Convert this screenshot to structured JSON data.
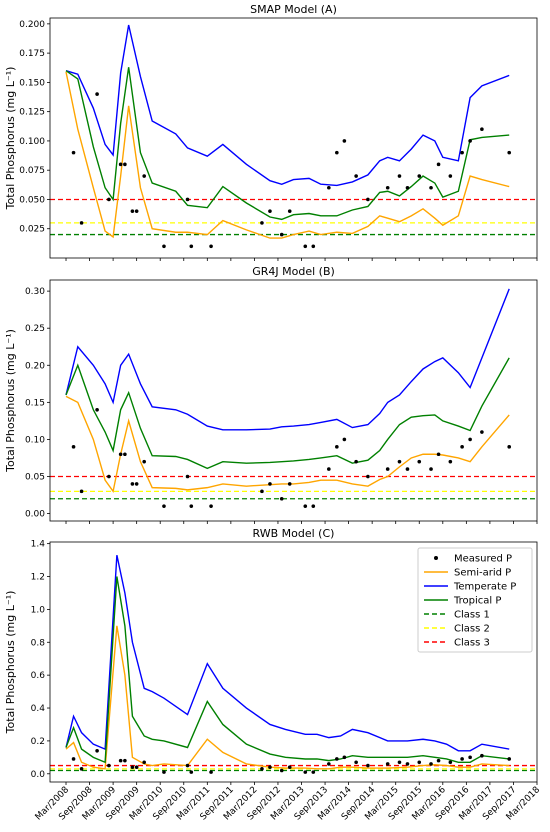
{
  "chart_data": [
    {
      "type": "line",
      "title": "SMAP Model (A)",
      "ylabel": "Total Phosphorus (mg L⁻¹)",
      "ylim": [
        0,
        0.205
      ],
      "yticks": [
        0.025,
        0.05,
        0.075,
        0.1,
        0.125,
        0.15,
        0.175,
        0.2
      ],
      "ytick_labels": [
        "0.025",
        "0.050",
        "0.075",
        "0.100",
        "0.125",
        "0.150",
        "0.175",
        "0.200"
      ],
      "x": [
        2008.17,
        2008.42,
        2008.75,
        2009.0,
        2009.17,
        2009.33,
        2009.5,
        2009.75,
        2010.0,
        2010.5,
        2010.75,
        2011.17,
        2011.5,
        2012.0,
        2012.5,
        2012.75,
        2013.0,
        2013.33,
        2013.58,
        2013.92,
        2014.25,
        2014.58,
        2014.83,
        2015.0,
        2015.25,
        2015.5,
        2015.75,
        2016.0,
        2016.17,
        2016.5,
        2016.75,
        2017.0,
        2017.58
      ],
      "series": [
        {
          "name": "Semi-arid P",
          "color": "#ffa500",
          "values": [
            0.159,
            0.11,
            0.06,
            0.023,
            0.018,
            0.07,
            0.13,
            0.06,
            0.025,
            0.022,
            0.022,
            0.02,
            0.032,
            0.024,
            0.017,
            0.017,
            0.02,
            0.023,
            0.02,
            0.022,
            0.021,
            0.027,
            0.036,
            0.034,
            0.031,
            0.036,
            0.042,
            0.034,
            0.028,
            0.036,
            0.07,
            0.067,
            0.061
          ]
        },
        {
          "name": "Temperate P",
          "color": "#0000ff",
          "values": [
            0.16,
            0.157,
            0.128,
            0.097,
            0.088,
            0.158,
            0.199,
            0.155,
            0.117,
            0.106,
            0.094,
            0.087,
            0.097,
            0.08,
            0.066,
            0.063,
            0.067,
            0.068,
            0.063,
            0.062,
            0.065,
            0.071,
            0.083,
            0.086,
            0.083,
            0.093,
            0.105,
            0.1,
            0.086,
            0.083,
            0.137,
            0.147,
            0.156
          ]
        },
        {
          "name": "Tropical P",
          "color": "#008000",
          "values": [
            0.16,
            0.153,
            0.095,
            0.06,
            0.05,
            0.115,
            0.163,
            0.09,
            0.064,
            0.057,
            0.045,
            0.043,
            0.061,
            0.047,
            0.035,
            0.033,
            0.037,
            0.038,
            0.036,
            0.036,
            0.041,
            0.044,
            0.056,
            0.057,
            0.053,
            0.061,
            0.07,
            0.064,
            0.052,
            0.057,
            0.101,
            0.103,
            0.105
          ]
        }
      ],
      "measured": {
        "name": "Measured P",
        "x": [
          2008.33,
          2008.5,
          2008.83,
          2009.08,
          2009.33,
          2009.42,
          2009.58,
          2009.67,
          2009.83,
          2010.25,
          2010.75,
          2010.83,
          2011.25,
          2012.33,
          2012.5,
          2012.75,
          2012.92,
          2013.25,
          2013.42,
          2013.75,
          2013.92,
          2014.08,
          2014.33,
          2014.58,
          2015.0,
          2015.25,
          2015.42,
          2015.67,
          2015.92,
          2016.08,
          2016.33,
          2016.58,
          2016.75,
          2017.0,
          2017.58
        ],
        "values": [
          0.09,
          0.03,
          0.14,
          0.05,
          0.08,
          0.08,
          0.04,
          0.04,
          0.07,
          0.01,
          0.05,
          0.01,
          0.01,
          0.03,
          0.04,
          0.02,
          0.04,
          0.01,
          0.01,
          0.06,
          0.09,
          0.1,
          0.07,
          0.05,
          0.06,
          0.07,
          0.06,
          0.07,
          0.06,
          0.08,
          0.07,
          0.09,
          0.1,
          0.11,
          0.09
        ]
      },
      "class_lines": [
        {
          "name": "Class 1",
          "value": 0.02,
          "color": "#008000"
        },
        {
          "name": "Class 2",
          "value": 0.03,
          "color": "#ffff00"
        },
        {
          "name": "Class 3",
          "value": 0.05,
          "color": "#ff0000"
        }
      ]
    },
    {
      "type": "line",
      "title": "GR4J Model (B)",
      "ylabel": "Total Phosphorus (mg L⁻¹)",
      "ylim": [
        -0.01,
        0.315
      ],
      "yticks": [
        0.0,
        0.05,
        0.1,
        0.15,
        0.2,
        0.25,
        0.3
      ],
      "ytick_labels": [
        "0.00",
        "0.05",
        "0.10",
        "0.15",
        "0.20",
        "0.25",
        "0.30"
      ],
      "x": [
        2008.17,
        2008.42,
        2008.75,
        2009.0,
        2009.17,
        2009.33,
        2009.5,
        2009.75,
        2010.0,
        2010.5,
        2010.75,
        2011.17,
        2011.5,
        2012.0,
        2012.5,
        2012.75,
        2013.0,
        2013.33,
        2013.58,
        2013.92,
        2014.25,
        2014.58,
        2014.83,
        2015.0,
        2015.25,
        2015.5,
        2015.75,
        2016.0,
        2016.17,
        2016.5,
        2016.75,
        2017.0,
        2017.58
      ],
      "series": [
        {
          "name": "Semi-arid P",
          "color": "#ffa500",
          "values": [
            0.158,
            0.15,
            0.1,
            0.045,
            0.03,
            0.08,
            0.125,
            0.07,
            0.035,
            0.034,
            0.032,
            0.035,
            0.04,
            0.037,
            0.039,
            0.04,
            0.04,
            0.042,
            0.045,
            0.045,
            0.04,
            0.037,
            0.046,
            0.05,
            0.063,
            0.075,
            0.08,
            0.08,
            0.079,
            0.075,
            0.07,
            0.09,
            0.133
          ]
        },
        {
          "name": "Temperate P",
          "color": "#0000ff",
          "values": [
            0.16,
            0.225,
            0.2,
            0.175,
            0.15,
            0.2,
            0.215,
            0.175,
            0.144,
            0.14,
            0.134,
            0.118,
            0.113,
            0.113,
            0.114,
            0.117,
            0.118,
            0.12,
            0.123,
            0.127,
            0.116,
            0.12,
            0.135,
            0.15,
            0.16,
            0.178,
            0.195,
            0.205,
            0.21,
            0.19,
            0.17,
            0.21,
            0.303
          ]
        },
        {
          "name": "Tropical P",
          "color": "#008000",
          "values": [
            0.16,
            0.2,
            0.14,
            0.11,
            0.085,
            0.14,
            0.163,
            0.115,
            0.078,
            0.077,
            0.073,
            0.061,
            0.07,
            0.068,
            0.069,
            0.07,
            0.071,
            0.073,
            0.075,
            0.078,
            0.068,
            0.072,
            0.085,
            0.1,
            0.12,
            0.13,
            0.132,
            0.133,
            0.125,
            0.118,
            0.112,
            0.145,
            0.21
          ]
        }
      ],
      "measured": {
        "name": "Measured P",
        "x": [
          2008.33,
          2008.5,
          2008.83,
          2009.08,
          2009.33,
          2009.42,
          2009.58,
          2009.67,
          2009.83,
          2010.25,
          2010.75,
          2010.83,
          2011.25,
          2012.33,
          2012.5,
          2012.75,
          2012.92,
          2013.25,
          2013.42,
          2013.75,
          2013.92,
          2014.08,
          2014.33,
          2014.58,
          2015.0,
          2015.25,
          2015.42,
          2015.67,
          2015.92,
          2016.08,
          2016.33,
          2016.58,
          2016.75,
          2017.0,
          2017.58
        ],
        "values": [
          0.09,
          0.03,
          0.14,
          0.05,
          0.08,
          0.08,
          0.04,
          0.04,
          0.07,
          0.01,
          0.05,
          0.01,
          0.01,
          0.03,
          0.04,
          0.02,
          0.04,
          0.01,
          0.01,
          0.06,
          0.09,
          0.1,
          0.07,
          0.05,
          0.06,
          0.07,
          0.06,
          0.07,
          0.06,
          0.08,
          0.07,
          0.09,
          0.1,
          0.11,
          0.09
        ]
      },
      "class_lines": [
        {
          "name": "Class 1",
          "value": 0.02,
          "color": "#008000"
        },
        {
          "name": "Class 2",
          "value": 0.03,
          "color": "#ffff00"
        },
        {
          "name": "Class 3",
          "value": 0.05,
          "color": "#ff0000"
        }
      ]
    },
    {
      "type": "line",
      "title": "RWB Model (C)",
      "ylabel": "Total Phosphorus (mg L⁻¹)",
      "ylim": [
        -0.05,
        1.41
      ],
      "yticks": [
        0.0,
        0.2,
        0.4,
        0.6,
        0.8,
        1.0,
        1.2,
        1.4
      ],
      "ytick_labels": [
        "0.0",
        "0.2",
        "0.4",
        "0.6",
        "0.8",
        "1.0",
        "1.2",
        "1.4"
      ],
      "x": [
        2008.17,
        2008.33,
        2008.5,
        2008.75,
        2009.0,
        2009.25,
        2009.42,
        2009.58,
        2009.83,
        2010.0,
        2010.25,
        2010.75,
        2011.17,
        2011.5,
        2012.0,
        2012.5,
        2012.83,
        2013.25,
        2013.5,
        2013.75,
        2014.0,
        2014.25,
        2014.58,
        2015.0,
        2015.42,
        2015.75,
        2016.0,
        2016.25,
        2016.5,
        2016.75,
        2017.0,
        2017.58
      ],
      "series": [
        {
          "name": "Semi-arid P",
          "color": "#ffa500",
          "values": [
            0.15,
            0.19,
            0.07,
            0.04,
            0.03,
            0.9,
            0.6,
            0.1,
            0.06,
            0.05,
            0.06,
            0.05,
            0.21,
            0.13,
            0.06,
            0.04,
            0.035,
            0.035,
            0.03,
            0.03,
            0.04,
            0.04,
            0.035,
            0.035,
            0.04,
            0.05,
            0.055,
            0.05,
            0.04,
            0.04,
            0.06,
            0.05
          ]
        },
        {
          "name": "Temperate P",
          "color": "#0000ff",
          "values": [
            0.16,
            0.35,
            0.25,
            0.18,
            0.15,
            1.33,
            1.1,
            0.8,
            0.52,
            0.5,
            0.46,
            0.36,
            0.67,
            0.52,
            0.4,
            0.3,
            0.27,
            0.24,
            0.24,
            0.22,
            0.23,
            0.27,
            0.25,
            0.2,
            0.2,
            0.21,
            0.2,
            0.18,
            0.14,
            0.14,
            0.18,
            0.15
          ]
        },
        {
          "name": "Tropical P",
          "color": "#008000",
          "values": [
            0.16,
            0.28,
            0.15,
            0.1,
            0.07,
            1.2,
            0.9,
            0.35,
            0.23,
            0.21,
            0.2,
            0.16,
            0.44,
            0.3,
            0.18,
            0.12,
            0.1,
            0.09,
            0.09,
            0.08,
            0.09,
            0.11,
            0.1,
            0.1,
            0.1,
            0.11,
            0.1,
            0.09,
            0.07,
            0.07,
            0.11,
            0.09
          ]
        }
      ],
      "measured": {
        "name": "Measured P",
        "x": [
          2008.33,
          2008.5,
          2008.83,
          2009.08,
          2009.33,
          2009.42,
          2009.58,
          2009.67,
          2009.83,
          2010.25,
          2010.75,
          2010.83,
          2011.25,
          2012.33,
          2012.5,
          2012.75,
          2012.92,
          2013.25,
          2013.42,
          2013.75,
          2013.92,
          2014.08,
          2014.33,
          2014.58,
          2015.0,
          2015.25,
          2015.42,
          2015.67,
          2015.92,
          2016.08,
          2016.33,
          2016.58,
          2016.75,
          2017.0,
          2017.58
        ],
        "values": [
          0.09,
          0.03,
          0.14,
          0.05,
          0.08,
          0.08,
          0.04,
          0.04,
          0.07,
          0.01,
          0.05,
          0.01,
          0.01,
          0.03,
          0.04,
          0.02,
          0.04,
          0.01,
          0.01,
          0.06,
          0.09,
          0.1,
          0.07,
          0.05,
          0.06,
          0.07,
          0.06,
          0.07,
          0.06,
          0.08,
          0.07,
          0.09,
          0.1,
          0.11,
          0.09
        ]
      },
      "class_lines": [
        {
          "name": "Class 1",
          "value": 0.02,
          "color": "#008000"
        },
        {
          "name": "Class 2",
          "value": 0.03,
          "color": "#ffff00"
        },
        {
          "name": "Class 3",
          "value": 0.05,
          "color": "#ff0000"
        }
      ],
      "legend": {
        "placement": "top-right",
        "entries": [
          "Measured P",
          "Semi-arid P",
          "Temperate P",
          "Tropical P",
          "Class 1",
          "Class 2",
          "Class 3"
        ]
      }
    }
  ],
  "x_axis": {
    "xlim": [
      2007.83,
      2018.17
    ],
    "ticks": [
      2008.17,
      2008.67,
      2009.17,
      2009.67,
      2010.17,
      2010.67,
      2011.17,
      2011.67,
      2012.17,
      2012.67,
      2013.17,
      2013.67,
      2014.17,
      2014.67,
      2015.17,
      2015.67,
      2016.17,
      2016.67,
      2017.17,
      2017.67,
      2018.17
    ],
    "tick_labels": [
      "Mar/2008",
      "Sep/2008",
      "Mar/2009",
      "Sep/2009",
      "Mar/2010",
      "Sep/2010",
      "Mar/2011",
      "Sep/2011",
      "Mar/2012",
      "Sep/2012",
      "Mar/2013",
      "Sep/2013",
      "Mar/2014",
      "Sep/2014",
      "Mar/2015",
      "Sep/2015",
      "Mar/2016",
      "Sep/2016",
      "Mar/2017",
      "Sep/2017",
      "Mar/2018"
    ]
  }
}
